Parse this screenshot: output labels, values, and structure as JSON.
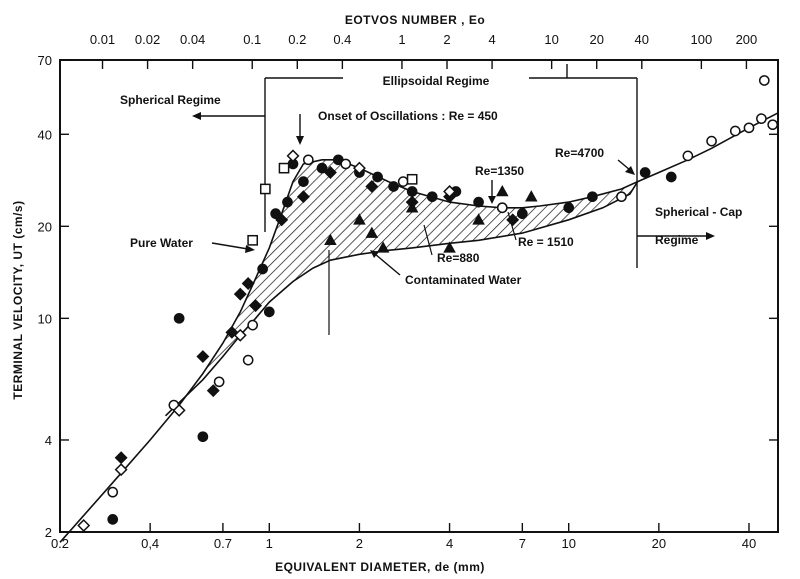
{
  "chart_data": {
    "type": "scatter",
    "title": "",
    "xlabel": "EQUIVALENT  DIAMETER, de (mm)",
    "ylabel": "TERMINAL  VELOCITY, UT (cm/s)",
    "x2label": "EOTVOS  NUMBER , Eo",
    "xscale": "log",
    "yscale": "log",
    "xlim": [
      0.2,
      50
    ],
    "ylim": [
      2,
      70
    ],
    "x_ticks": [
      "0.2",
      "0,4",
      "0.7",
      "1",
      "2",
      "4",
      "7",
      "10",
      "20",
      "40"
    ],
    "y_ticks": [
      "2",
      "4",
      "10",
      "20",
      "40",
      "70"
    ],
    "x2_ticks": [
      "0.01",
      "0.02",
      "0.04",
      "0.1",
      "0.2",
      "0.4",
      "1",
      "2",
      "4",
      "10",
      "20",
      "40",
      "100",
      "200"
    ],
    "annotations": {
      "ellipsoidal": "Ellipsoidal  Regime",
      "spherical": "Spherical  Regime",
      "onset": "Onset  of  Oscillations : Re = 450",
      "re1350": "Re=1350",
      "re4700": "Re=4700",
      "pure": "Pure  Water",
      "re880": "Re=880",
      "re1510": "Re = 1510",
      "contaminated": "Contaminated  Water",
      "cap1": "Spherical - Cap",
      "cap2": "Regime"
    },
    "series": [
      {
        "name": "",
        "marker": "filled-circle",
        "points": [
          [
            0.3,
            2.2
          ],
          [
            0.5,
            10
          ],
          [
            0.6,
            4.1
          ],
          [
            0.95,
            14.5
          ],
          [
            1.0,
            10.5
          ],
          [
            1.05,
            22
          ],
          [
            1.15,
            24
          ],
          [
            1.2,
            32
          ],
          [
            1.3,
            28
          ],
          [
            1.5,
            31
          ],
          [
            1.7,
            33
          ],
          [
            2.0,
            30
          ],
          [
            2.3,
            29
          ],
          [
            2.6,
            27
          ],
          [
            3.0,
            26
          ],
          [
            3.5,
            25
          ],
          [
            4.2,
            26
          ],
          [
            5.0,
            24
          ],
          [
            6.0,
            23
          ],
          [
            7.0,
            22
          ],
          [
            10.0,
            23
          ],
          [
            12.0,
            25
          ],
          [
            18.0,
            30
          ],
          [
            22.0,
            29
          ]
        ]
      },
      {
        "name": "",
        "marker": "filled-diamond",
        "points": [
          [
            0.32,
            3.5
          ],
          [
            0.6,
            7.5
          ],
          [
            0.65,
            5.8
          ],
          [
            0.75,
            9
          ],
          [
            0.8,
            12
          ],
          [
            0.85,
            13
          ],
          [
            0.9,
            11
          ],
          [
            1.1,
            21
          ],
          [
            1.3,
            25
          ],
          [
            1.6,
            30
          ],
          [
            2.2,
            27
          ],
          [
            3.0,
            24
          ],
          [
            4.0,
            25
          ],
          [
            6.5,
            21
          ]
        ]
      },
      {
        "name": "",
        "marker": "open-circle",
        "points": [
          [
            0.3,
            2.7
          ],
          [
            0.48,
            5.2
          ],
          [
            0.68,
            6.2
          ],
          [
            0.85,
            7.3
          ],
          [
            0.88,
            9.5
          ],
          [
            1.35,
            33
          ],
          [
            1.8,
            32
          ],
          [
            2.8,
            28
          ],
          [
            6.0,
            23
          ],
          [
            15.0,
            25
          ],
          [
            25.0,
            34
          ],
          [
            30.0,
            38
          ],
          [
            36.0,
            41
          ],
          [
            40.0,
            42
          ],
          [
            44.0,
            45
          ],
          [
            48.0,
            43
          ],
          [
            45.0,
            60
          ]
        ]
      },
      {
        "name": "",
        "marker": "open-diamond",
        "points": [
          [
            0.24,
            2.1
          ],
          [
            0.32,
            3.2
          ],
          [
            0.5,
            5.0
          ],
          [
            0.8,
            8.8
          ],
          [
            1.2,
            34
          ],
          [
            2.0,
            31
          ],
          [
            4.0,
            26
          ]
        ]
      },
      {
        "name": "",
        "marker": "open-square",
        "points": [
          [
            0.88,
            18
          ],
          [
            0.97,
            26.5
          ],
          [
            1.12,
            31
          ],
          [
            3.0,
            28.5
          ]
        ]
      },
      {
        "name": "",
        "marker": "filled-triangle",
        "points": [
          [
            1.6,
            18
          ],
          [
            2.0,
            21
          ],
          [
            2.2,
            19
          ],
          [
            2.4,
            17
          ],
          [
            3.0,
            23
          ],
          [
            4.0,
            17
          ],
          [
            5.0,
            21
          ],
          [
            6.0,
            26
          ],
          [
            7.5,
            25
          ]
        ]
      }
    ],
    "curves": {
      "pure_water": [
        [
          0.2,
          1.85
        ],
        [
          0.3,
          2.9
        ],
        [
          0.4,
          4.0
        ],
        [
          0.5,
          5.2
        ],
        [
          0.6,
          6.6
        ],
        [
          0.7,
          8.3
        ],
        [
          0.8,
          10.5
        ],
        [
          0.9,
          13.5
        ],
        [
          1.0,
          17
        ],
        [
          1.1,
          22
        ],
        [
          1.2,
          28
        ],
        [
          1.3,
          32
        ],
        [
          1.5,
          33
        ],
        [
          1.7,
          33
        ],
        [
          2.0,
          31
        ],
        [
          2.5,
          28
        ],
        [
          3.0,
          26
        ],
        [
          4.0,
          24
        ],
        [
          5.0,
          23.3
        ],
        [
          6.0,
          23
        ],
        [
          7.0,
          23
        ],
        [
          8.0,
          23.3
        ],
        [
          10.0,
          24
        ],
        [
          12.0,
          25
        ],
        [
          15.0,
          26.5
        ],
        [
          17.0,
          28
        ],
        [
          20.0,
          30
        ],
        [
          25.0,
          33
        ],
        [
          30.0,
          36
        ],
        [
          40.0,
          42
        ],
        [
          50.0,
          47
        ]
      ],
      "contaminated": [
        [
          0.45,
          4.8
        ],
        [
          0.5,
          5.3
        ],
        [
          0.6,
          6.3
        ],
        [
          0.7,
          7.5
        ],
        [
          0.8,
          8.8
        ],
        [
          0.9,
          10
        ],
        [
          1.0,
          11.3
        ],
        [
          1.2,
          13.2
        ],
        [
          1.4,
          14.6
        ],
        [
          1.6,
          15.5
        ],
        [
          2.0,
          16.2
        ],
        [
          2.5,
          16.7
        ],
        [
          3.0,
          17
        ],
        [
          4.0,
          17.6
        ],
        [
          5.0,
          18
        ],
        [
          7.0,
          19
        ],
        [
          10.0,
          21
        ],
        [
          13.0,
          23
        ],
        [
          16.0,
          25.5
        ],
        [
          17.0,
          28
        ]
      ]
    },
    "grid": false,
    "legend": "none"
  }
}
